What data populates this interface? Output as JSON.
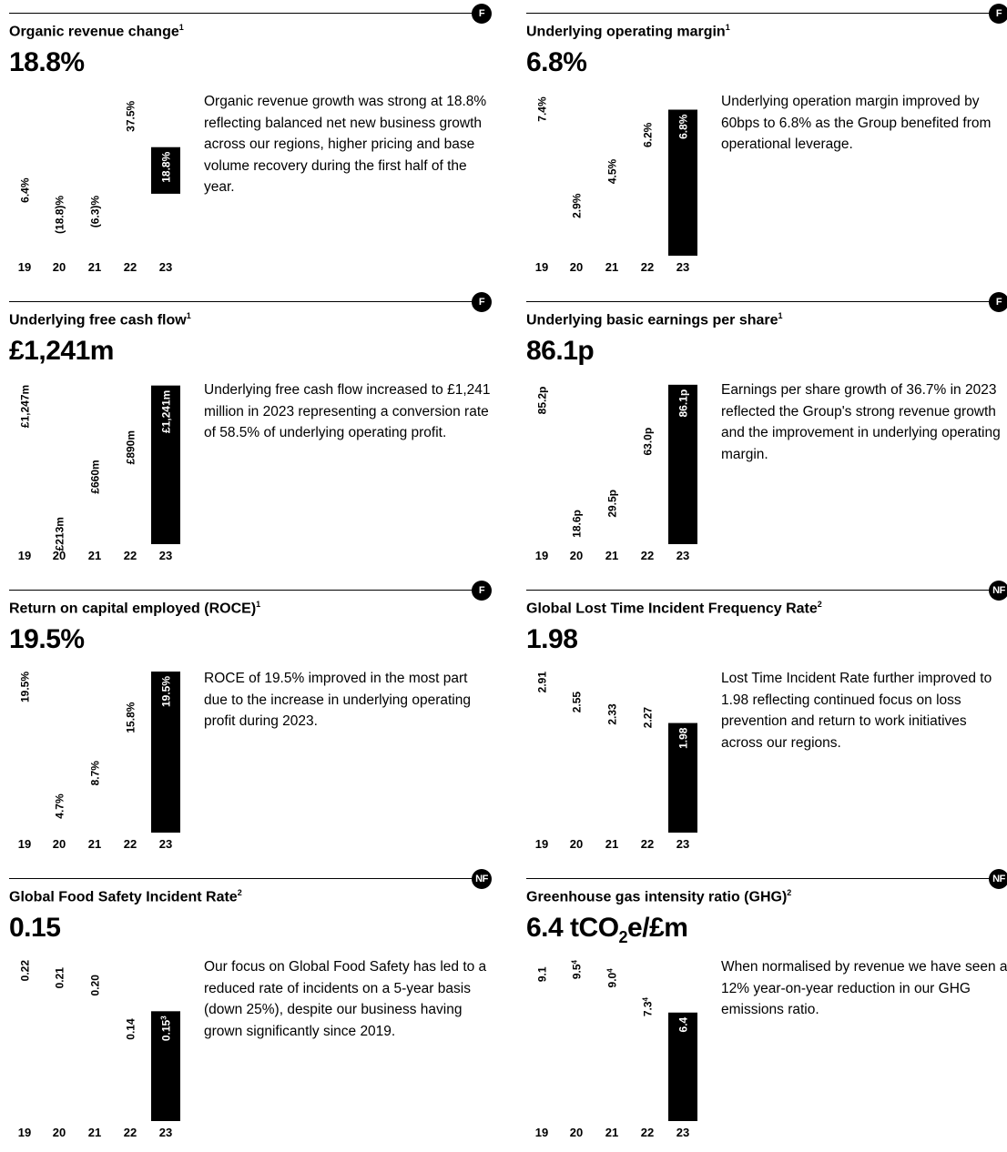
{
  "kpis": [
    {
      "title": "Organic revenue change",
      "title_sup": "1",
      "value": "18.8%",
      "badge": "F",
      "description": "Organic revenue growth was strong at 18.8% reflecting balanced net new business growth across our regions, higher pricing and base volume recovery during the first half of the year."
    },
    {
      "title": "Underlying operating margin",
      "title_sup": "1",
      "value": "6.8%",
      "badge": "F",
      "description": "Underlying operation margin improved by 60bps to 6.8% as the Group benefited from operational leverage."
    },
    {
      "title": "Underlying free cash flow",
      "title_sup": "1",
      "value": "£1,241m",
      "badge": "F",
      "description": "Underlying free cash flow increased to £1,241 million in 2023 representing a conversion rate of 58.5% of underlying operating profit."
    },
    {
      "title": "Underlying basic earnings per share",
      "title_sup": "1",
      "value": "86.1p",
      "badge": "F",
      "description": "Earnings per share growth of 36.7% in 2023 reflected the Group's strong revenue growth and the improvement in underlying operating margin."
    },
    {
      "title": "Return on capital employed (ROCE)",
      "title_sup": "1",
      "value": "19.5%",
      "badge": "F",
      "description": "ROCE of 19.5% improved in the most part due to the increase in underlying operating profit during 2023."
    },
    {
      "title": "Global Lost Time Incident Frequency Rate",
      "title_sup": "2",
      "value": "1.98",
      "badge": "NF",
      "description": "Lost Time Incident Rate further improved to 1.98 reflecting continued focus on loss prevention and return to work initiatives across our regions."
    },
    {
      "title": "Global Food Safety Incident Rate",
      "title_sup": "2",
      "value": "0.15",
      "badge": "NF",
      "description": "Our focus on Global Food Safety has led to a reduced rate of incidents on a 5-year basis (down 25%), despite our business having grown significantly since 2019."
    },
    {
      "title": "Greenhouse gas intensity ratio (GHG)",
      "title_sup": "2",
      "value_main": "6.4 tCO",
      "value_sub": "2",
      "value_tail": "e/£m",
      "badge": "NF",
      "description": "When normalised by revenue we have seen a 12% year-on-year reduction in our GHG emissions ratio."
    }
  ],
  "chart_data": [
    {
      "type": "bar",
      "categories": [
        "19",
        "20",
        "21",
        "22",
        "23"
      ],
      "values": [
        6.4,
        -18.8,
        -6.3,
        37.5,
        18.8
      ],
      "labels": [
        "6.4%",
        "(18.8)%",
        "(6.3)%",
        "37.5%",
        "18.8%"
      ],
      "ylim": [
        -25,
        40
      ]
    },
    {
      "type": "bar",
      "categories": [
        "19",
        "20",
        "21",
        "22",
        "23"
      ],
      "values": [
        7.4,
        2.9,
        4.5,
        6.2,
        6.8
      ],
      "labels": [
        "7.4%",
        "2.9%",
        "4.5%",
        "6.2%",
        "6.8%"
      ],
      "ylim": [
        0,
        7.5
      ]
    },
    {
      "type": "bar",
      "categories": [
        "19",
        "20",
        "21",
        "22",
        "23"
      ],
      "values": [
        1247,
        213,
        660,
        890,
        1241
      ],
      "labels": [
        "£1,247m",
        "£213m",
        "£660m",
        "£890m",
        "£1,241m"
      ],
      "ylim": [
        0,
        1260
      ]
    },
    {
      "type": "bar",
      "categories": [
        "19",
        "20",
        "21",
        "22",
        "23"
      ],
      "values": [
        85.2,
        18.6,
        29.5,
        63.0,
        86.1
      ],
      "labels": [
        "85.2p",
        "18.6p",
        "29.5p",
        "63.0p",
        "86.1p"
      ],
      "ylim": [
        0,
        87
      ]
    },
    {
      "type": "bar",
      "categories": [
        "19",
        "20",
        "21",
        "22",
        "23"
      ],
      "values": [
        19.5,
        4.7,
        8.7,
        15.8,
        19.5
      ],
      "labels": [
        "19.5%",
        "4.7%",
        "8.7%",
        "15.8%",
        "19.5%"
      ],
      "ylim": [
        0,
        19.5
      ]
    },
    {
      "type": "bar",
      "categories": [
        "19",
        "20",
        "21",
        "22",
        "23"
      ],
      "values": [
        2.91,
        2.55,
        2.33,
        2.27,
        1.98
      ],
      "labels": [
        "2.91",
        "2.55",
        "2.33",
        "2.27",
        "1.98"
      ],
      "ylim": [
        0,
        2.91
      ]
    },
    {
      "type": "bar",
      "categories": [
        "19",
        "20",
        "21",
        "22",
        "23"
      ],
      "values": [
        0.22,
        0.21,
        0.2,
        0.14,
        0.15
      ],
      "labels": [
        "0.22",
        "0.21",
        "0.20",
        "0.14",
        "0.15"
      ],
      "label_sups": [
        "",
        "",
        "",
        "",
        "3"
      ],
      "ylim": [
        0,
        0.22
      ]
    },
    {
      "type": "bar",
      "categories": [
        "19",
        "20",
        "21",
        "22",
        "23"
      ],
      "values": [
        9.1,
        9.5,
        9.0,
        7.3,
        6.4
      ],
      "labels": [
        "9.1",
        "9.5",
        "9.0",
        "7.3",
        "6.4"
      ],
      "label_sups": [
        "",
        "4",
        "4",
        "4",
        ""
      ],
      "ylim": [
        0,
        9.5
      ]
    }
  ]
}
